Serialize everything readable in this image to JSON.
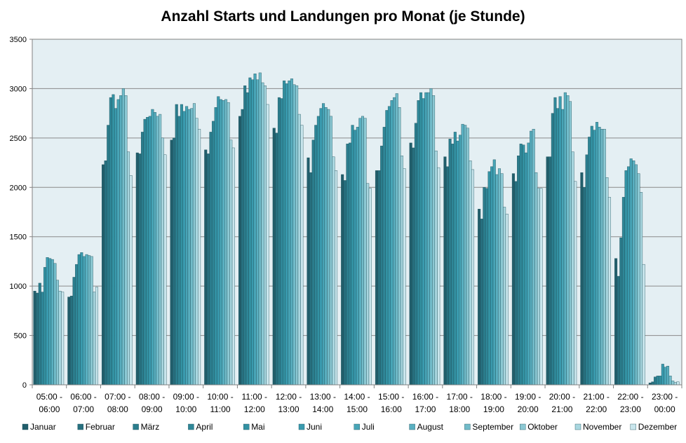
{
  "chart_data": {
    "type": "bar",
    "title": "Anzahl Starts und Landungen pro Monat (je Stunde)",
    "xlabel": "",
    "ylabel": "",
    "ylim": [
      0,
      3500
    ],
    "yticks": [
      "0",
      "500",
      "1000",
      "1500",
      "2000",
      "2500",
      "3000",
      "3500"
    ],
    "grid": true,
    "legend_position": "bottom",
    "categories": [
      {
        "line1": "05:00 -",
        "line2": "06:00"
      },
      {
        "line1": "06:00 -",
        "line2": "07:00"
      },
      {
        "line1": "07:00 -",
        "line2": "08:00"
      },
      {
        "line1": "08:00 -",
        "line2": "09:00"
      },
      {
        "line1": "09:00 -",
        "line2": "10:00"
      },
      {
        "line1": "10:00 -",
        "line2": "11:00"
      },
      {
        "line1": "11:00 -",
        "line2": "12:00"
      },
      {
        "line1": "12:00 -",
        "line2": "13:00"
      },
      {
        "line1": "13:00 -",
        "line2": "14:00"
      },
      {
        "line1": "14:00 -",
        "line2": "15:00"
      },
      {
        "line1": "15:00 -",
        "line2": "16:00"
      },
      {
        "line1": "16:00 -",
        "line2": "17:00"
      },
      {
        "line1": "17:00 -",
        "line2": "18:00"
      },
      {
        "line1": "18:00 -",
        "line2": "19:00"
      },
      {
        "line1": "19:00 -",
        "line2": "20:00"
      },
      {
        "line1": "20:00 -",
        "line2": "21:00"
      },
      {
        "line1": "21:00 -",
        "line2": "22:00"
      },
      {
        "line1": "22:00 -",
        "line2": "23:00"
      },
      {
        "line1": "23:00 -",
        "line2": "00:00"
      }
    ],
    "series": [
      {
        "name": "Januar",
        "color": "#215e6b",
        "values": [
          950,
          890,
          2230,
          2350,
          2480,
          2380,
          2720,
          2600,
          2300,
          2130,
          2170,
          2450,
          2310,
          1780,
          2140,
          2310,
          2150,
          1280,
          20
        ]
      },
      {
        "name": "Februar",
        "color": "#27707f",
        "values": [
          930,
          900,
          2270,
          2340,
          2500,
          2340,
          2790,
          2550,
          2150,
          2070,
          2170,
          2400,
          2210,
          1680,
          2060,
          2310,
          2000,
          1100,
          30
        ]
      },
      {
        "name": "März",
        "color": "#2b7d8d",
        "values": [
          1030,
          1090,
          2630,
          2560,
          2840,
          2560,
          3030,
          2910,
          2480,
          2440,
          2420,
          2650,
          2490,
          2000,
          2320,
          2750,
          2330,
          1490,
          80
        ]
      },
      {
        "name": "April",
        "color": "#2f8798",
        "values": [
          940,
          1220,
          2910,
          2690,
          2720,
          2670,
          2960,
          2900,
          2630,
          2450,
          2610,
          2880,
          2440,
          1990,
          2440,
          2910,
          2510,
          1900,
          90
        ]
      },
      {
        "name": "Mai",
        "color": "#3392a3",
        "values": [
          1190,
          1320,
          2940,
          2710,
          2840,
          2810,
          3110,
          3080,
          2720,
          2630,
          2780,
          2960,
          2560,
          2160,
          2430,
          2800,
          2620,
          2170,
          90
        ]
      },
      {
        "name": "Juni",
        "color": "#3a9baf",
        "values": [
          1290,
          1340,
          2800,
          2720,
          2770,
          2920,
          3090,
          3050,
          2800,
          2580,
          2820,
          2900,
          2470,
          2210,
          2350,
          2920,
          2580,
          2210,
          210
        ]
      },
      {
        "name": "Juli",
        "color": "#48a5b7",
        "values": [
          1280,
          1300,
          2890,
          2790,
          2820,
          2890,
          3150,
          3080,
          2850,
          2610,
          2880,
          2960,
          2530,
          2280,
          2450,
          2790,
          2660,
          2290,
          180
        ]
      },
      {
        "name": "August",
        "color": "#5ab0c1",
        "values": [
          1270,
          1320,
          2930,
          2760,
          2790,
          2880,
          3090,
          3100,
          2810,
          2700,
          2910,
          2960,
          2640,
          2130,
          2570,
          2960,
          2610,
          2270,
          190
        ]
      },
      {
        "name": "September",
        "color": "#72bcca",
        "values": [
          1230,
          1310,
          3000,
          2720,
          2800,
          2890,
          3160,
          3040,
          2790,
          2720,
          2950,
          3000,
          2630,
          2190,
          2590,
          2930,
          2590,
          2230,
          90
        ]
      },
      {
        "name": "Oktober",
        "color": "#8cc9d4",
        "values": [
          1060,
          1300,
          2930,
          2740,
          2850,
          2860,
          3060,
          3030,
          2720,
          2700,
          2810,
          2930,
          2600,
          2140,
          2150,
          2870,
          2590,
          2140,
          40
        ]
      },
      {
        "name": "November",
        "color": "#a9d7e0",
        "values": [
          950,
          940,
          2360,
          2500,
          2700,
          2480,
          3030,
          2740,
          2310,
          2040,
          2320,
          2370,
          2270,
          1800,
          1990,
          2360,
          2100,
          1950,
          25
        ]
      },
      {
        "name": "Dezember",
        "color": "#c9e6ed",
        "values": [
          940,
          990,
          2120,
          2330,
          2590,
          2400,
          2840,
          2630,
          2170,
          1990,
          2190,
          2200,
          2180,
          1730,
          1990,
          2060,
          1900,
          1220,
          30
        ]
      }
    ]
  }
}
